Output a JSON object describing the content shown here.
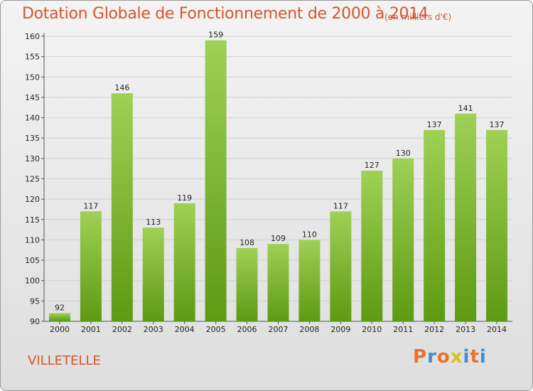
{
  "title": "Dotation Globale de Fonctionnement de 2000 à 2014",
  "subtitle": "(en milliers d'€)",
  "commune": "VILLETELLE",
  "logo_text": "Proxiti",
  "colors": {
    "title": "#d4552e",
    "bar_top": "#9ed155",
    "bar_bottom": "#5e9a12",
    "logo": [
      "#e8732c",
      "#3b8fd4",
      "#e8732c",
      "#d6c21f",
      "#3b8fd4",
      "#e8732c",
      "#3b8fd4"
    ]
  },
  "chart_data": {
    "type": "bar",
    "title": "Dotation Globale de Fonctionnement de 2000 à 2014",
    "subtitle": "(en milliers d'€)",
    "categories": [
      "2000",
      "2001",
      "2002",
      "2003",
      "2004",
      "2005",
      "2006",
      "2007",
      "2008",
      "2009",
      "2010",
      "2011",
      "2012",
      "2013",
      "2014"
    ],
    "values": [
      92,
      117,
      146,
      113,
      119,
      159,
      108,
      109,
      110,
      117,
      127,
      130,
      137,
      141,
      137
    ],
    "ylim": [
      90,
      160
    ],
    "yticks": [
      90,
      95,
      100,
      105,
      110,
      115,
      120,
      125,
      130,
      135,
      140,
      145,
      150,
      155,
      160
    ],
    "grid": true,
    "data_labels": true
  }
}
